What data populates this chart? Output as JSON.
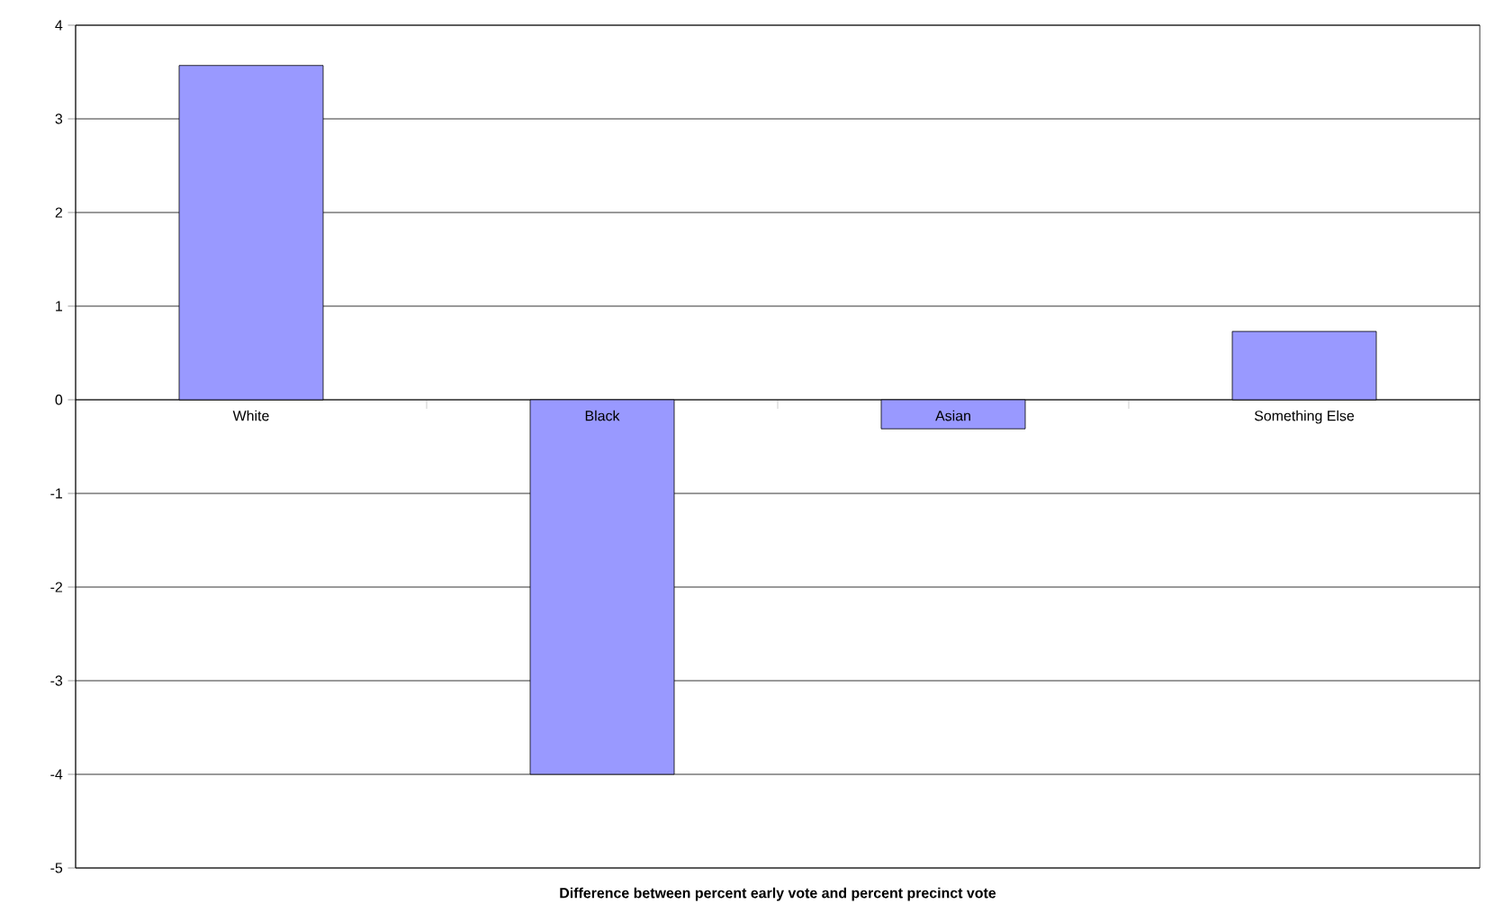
{
  "chart_data": {
    "type": "bar",
    "xlabel": "**Difference between percent early vote and percent precinct vote**",
    "categories": [
      "White",
      "Black",
      "Asian",
      "Something Else"
    ],
    "values": [
      3.57,
      -4.0,
      -0.31,
      0.73
    ],
    "color": "#9999ff",
    "ylim": [
      -5,
      4
    ],
    "yticks": [
      -5,
      -4,
      -3,
      -2,
      -1,
      0,
      1,
      2,
      3,
      4
    ],
    "grid": "y"
  }
}
